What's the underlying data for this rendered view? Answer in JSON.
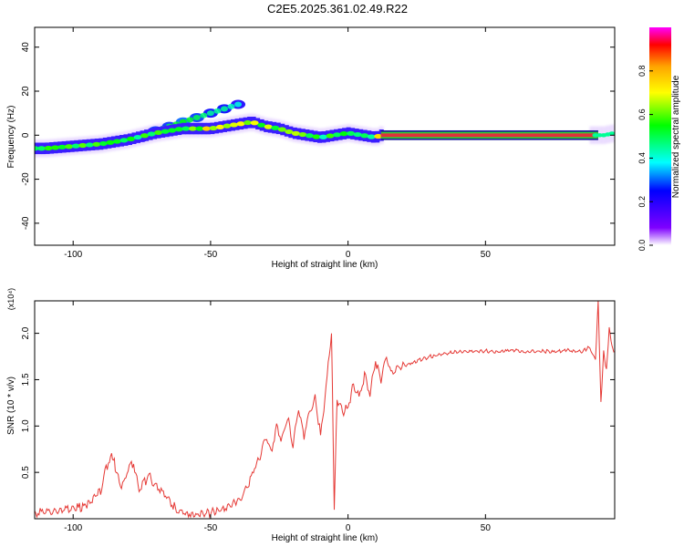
{
  "title": "C2E5.2025.361.02.49.R22",
  "colors": {
    "snr_line": "#e53935",
    "axis": "#000000",
    "colorbar": [
      "#ff00ff",
      "#ff0000",
      "#ffa500",
      "#ffff00",
      "#00ff00",
      "#00ffff",
      "#0000ff",
      "#7f00ff",
      "#ffffff"
    ]
  },
  "chart_data": [
    {
      "type": "heatmap",
      "title": "",
      "xlabel": "Height of straight line (km)",
      "ylabel": "Frequency (Hz)",
      "xlim": [
        -114,
        97
      ],
      "ylim": [
        -50,
        49
      ],
      "xticks": [
        -100,
        -50,
        0,
        50
      ],
      "yticks": [
        -40,
        -20,
        0,
        20,
        40
      ],
      "colorbar": {
        "label": "Normalized spectral amplitude",
        "ticks": [
          0.0,
          0.2,
          0.4,
          0.6,
          0.8
        ],
        "range": [
          0,
          1
        ],
        "colormap": "magenta-red-yellow-green-cyan-blue-purple-white"
      },
      "ridge": {
        "description_points_x": [
          -114,
          -110,
          -100,
          -90,
          -80,
          -70,
          -60,
          -50,
          -45,
          -40,
          -35,
          -30,
          -25,
          -20,
          -15,
          -10,
          -5,
          0,
          5,
          10,
          12,
          20,
          40,
          60,
          80,
          90,
          93,
          97
        ],
        "description_points_y": [
          -6,
          -6,
          -5,
          -4,
          -2,
          1,
          3,
          3,
          4,
          5,
          6,
          4,
          3,
          1,
          0,
          -1,
          0,
          1,
          0,
          -1,
          0,
          0,
          0,
          0,
          0,
          0,
          0,
          1
        ],
        "amplitude": [
          0.5,
          0.6,
          0.6,
          0.6,
          0.55,
          0.6,
          0.55,
          0.8,
          0.7,
          0.75,
          0.7,
          0.7,
          0.6,
          0.75,
          0.6,
          0.55,
          0.6,
          0.55,
          0.5,
          0.55,
          0.95,
          0.95,
          0.95,
          0.95,
          0.95,
          0.95,
          0.6,
          0.5
        ]
      },
      "upper_branch": {
        "x": [
          -75,
          -70,
          -65,
          -60,
          -55,
          -50,
          -45,
          -40
        ],
        "y": [
          -1,
          2,
          4,
          6,
          8,
          10,
          12,
          14
        ],
        "amplitude": [
          0.4,
          0.5,
          0.5,
          0.55,
          0.5,
          0.45,
          0.45,
          0.4
        ]
      }
    },
    {
      "type": "line",
      "title": "",
      "xlabel": "Height of straight line (km)",
      "ylabel": "SNR (10 * v/v)",
      "y_multiplier": "(x10⁴)",
      "xlim": [
        -114,
        97
      ],
      "ylim": [
        0.0,
        2.35
      ],
      "xticks": [
        -100,
        -50,
        0,
        50
      ],
      "yticks": [
        0.5,
        1.0,
        1.5,
        2.0
      ],
      "series": [
        {
          "name": "",
          "x": [
            -114,
            -108,
            -100,
            -95,
            -90,
            -88,
            -86,
            -85,
            -84,
            -82,
            -80,
            -78,
            -76,
            -74,
            -72,
            -70,
            -68,
            -66,
            -64,
            -60,
            -55,
            -50,
            -45,
            -40,
            -38,
            -36,
            -34,
            -32,
            -30,
            -28,
            -26,
            -24,
            -22,
            -20,
            -18,
            -16,
            -14,
            -12,
            -10,
            -8,
            -6,
            -5,
            -4,
            -2,
            0,
            2,
            4,
            6,
            8,
            10,
            12,
            14,
            16,
            18,
            20,
            25,
            30,
            35,
            40,
            45,
            50,
            55,
            60,
            65,
            70,
            75,
            80,
            85,
            88,
            90,
            91,
            92,
            93,
            94,
            95,
            96,
            97
          ],
          "y": [
            0.06,
            0.08,
            0.1,
            0.15,
            0.3,
            0.55,
            0.68,
            0.62,
            0.45,
            0.35,
            0.55,
            0.6,
            0.3,
            0.4,
            0.45,
            0.35,
            0.3,
            0.25,
            0.15,
            0.06,
            0.04,
            0.06,
            0.12,
            0.2,
            0.25,
            0.4,
            0.55,
            0.65,
            0.9,
            0.7,
            1.0,
            0.85,
            1.1,
            0.8,
            1.2,
            0.9,
            1.15,
            1.3,
            0.9,
            1.4,
            2.03,
            0.12,
            1.3,
            1.15,
            1.2,
            1.45,
            1.3,
            1.55,
            1.35,
            1.7,
            1.5,
            1.75,
            1.55,
            1.62,
            1.65,
            1.7,
            1.75,
            1.78,
            1.8,
            1.8,
            1.81,
            1.8,
            1.82,
            1.8,
            1.81,
            1.8,
            1.82,
            1.8,
            1.85,
            1.7,
            2.35,
            1.25,
            1.8,
            1.6,
            2.05,
            1.85,
            1.8
          ]
        }
      ]
    }
  ]
}
